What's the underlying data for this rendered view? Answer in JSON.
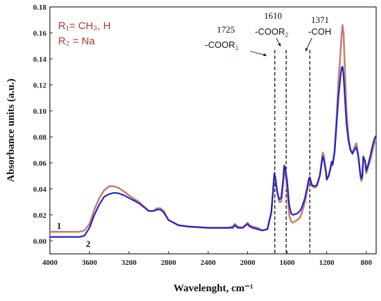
{
  "chart_data": {
    "type": "line",
    "title": "",
    "xlabel": "Wavelenght, cm⁻¹",
    "ylabel": "Absorbance units (a.u.)",
    "xlim": [
      4000,
      700
    ],
    "ylim": [
      -0.01,
      0.18
    ],
    "x_ticks": [
      "4000",
      "3600",
      "3200",
      "2800",
      "2400",
      "2000",
      "1600",
      "1200",
      "800"
    ],
    "y_ticks": [
      "0.00",
      "0.02",
      "0.04",
      "0.06",
      "0.08",
      "0.10",
      "0.12",
      "0.14",
      "0.16",
      "0.18"
    ],
    "grid": false,
    "legend_text": [
      "R₁= CH₃, H",
      "R₂ = Na"
    ],
    "annotations": [
      {
        "x": 1725,
        "number": "1725",
        "group_prefix": "-COOR",
        "group_sub": "1"
      },
      {
        "x": 1610,
        "number": "1610",
        "group_prefix": "-COOR",
        "group_sub": "2"
      },
      {
        "x": 1371,
        "number": "1371",
        "group_prefix": "-COH",
        "group_sub": ""
      }
    ],
    "series": [
      {
        "label": "1",
        "color": "#c87f6f",
        "points": [
          [
            4000,
            0.007
          ],
          [
            3800,
            0.007
          ],
          [
            3700,
            0.007
          ],
          [
            3650,
            0.008
          ],
          [
            3600,
            0.013
          ],
          [
            3550,
            0.024
          ],
          [
            3500,
            0.033
          ],
          [
            3450,
            0.039
          ],
          [
            3400,
            0.042
          ],
          [
            3350,
            0.042
          ],
          [
            3300,
            0.0405
          ],
          [
            3250,
            0.038
          ],
          [
            3200,
            0.035
          ],
          [
            3100,
            0.03
          ],
          [
            3000,
            0.023
          ],
          [
            2950,
            0.023
          ],
          [
            2920,
            0.025
          ],
          [
            2880,
            0.025
          ],
          [
            2850,
            0.023
          ],
          [
            2800,
            0.016
          ],
          [
            2700,
            0.012
          ],
          [
            2600,
            0.011
          ],
          [
            2400,
            0.01
          ],
          [
            2200,
            0.01
          ],
          [
            2150,
            0.011
          ],
          [
            2130,
            0.013
          ],
          [
            2100,
            0.011
          ],
          [
            2050,
            0.01
          ],
          [
            2000,
            0.014
          ],
          [
            1980,
            0.012
          ],
          [
            1950,
            0.011
          ],
          [
            1900,
            0.01
          ],
          [
            1850,
            0.008
          ],
          [
            1800,
            0.009
          ],
          [
            1760,
            0.022
          ],
          [
            1740,
            0.04
          ],
          [
            1730,
            0.05
          ],
          [
            1720,
            0.048
          ],
          [
            1700,
            0.038
          ],
          [
            1680,
            0.03
          ],
          [
            1660,
            0.03
          ],
          [
            1640,
            0.045
          ],
          [
            1630,
            0.055
          ],
          [
            1620,
            0.052
          ],
          [
            1600,
            0.04
          ],
          [
            1580,
            0.02
          ],
          [
            1560,
            0.015
          ],
          [
            1540,
            0.014
          ],
          [
            1500,
            0.016
          ],
          [
            1470,
            0.018
          ],
          [
            1450,
            0.022
          ],
          [
            1420,
            0.03
          ],
          [
            1400,
            0.038
          ],
          [
            1380,
            0.046
          ],
          [
            1371,
            0.046
          ],
          [
            1350,
            0.042
          ],
          [
            1320,
            0.041
          ],
          [
            1300,
            0.042
          ],
          [
            1270,
            0.05
          ],
          [
            1250,
            0.062
          ],
          [
            1240,
            0.068
          ],
          [
            1230,
            0.066
          ],
          [
            1210,
            0.055
          ],
          [
            1200,
            0.048
          ],
          [
            1180,
            0.05
          ],
          [
            1160,
            0.056
          ],
          [
            1150,
            0.06
          ],
          [
            1140,
            0.058
          ],
          [
            1120,
            0.07
          ],
          [
            1100,
            0.095
          ],
          [
            1080,
            0.125
          ],
          [
            1060,
            0.145
          ],
          [
            1050,
            0.158
          ],
          [
            1040,
            0.166
          ],
          [
            1030,
            0.16
          ],
          [
            1020,
            0.14
          ],
          [
            1000,
            0.1
          ],
          [
            980,
            0.08
          ],
          [
            960,
            0.07
          ],
          [
            940,
            0.068
          ],
          [
            920,
            0.072
          ],
          [
            900,
            0.075
          ],
          [
            880,
            0.065
          ],
          [
            860,
            0.05
          ],
          [
            850,
            0.046
          ],
          [
            840,
            0.048
          ],
          [
            830,
            0.063
          ],
          [
            810,
            0.06
          ],
          [
            800,
            0.052
          ],
          [
            780,
            0.057
          ],
          [
            760,
            0.062
          ],
          [
            740,
            0.068
          ],
          [
            720,
            0.075
          ],
          [
            700,
            0.078
          ]
        ]
      },
      {
        "label": "2",
        "color": "#2222cc",
        "points": [
          [
            4000,
            0.003
          ],
          [
            3800,
            0.003
          ],
          [
            3700,
            0.003
          ],
          [
            3650,
            0.004
          ],
          [
            3600,
            0.01
          ],
          [
            3550,
            0.02
          ],
          [
            3500,
            0.028
          ],
          [
            3450,
            0.034
          ],
          [
            3400,
            0.036
          ],
          [
            3350,
            0.037
          ],
          [
            3300,
            0.0365
          ],
          [
            3250,
            0.035
          ],
          [
            3200,
            0.033
          ],
          [
            3100,
            0.029
          ],
          [
            3000,
            0.023
          ],
          [
            2950,
            0.023
          ],
          [
            2920,
            0.024
          ],
          [
            2880,
            0.024
          ],
          [
            2850,
            0.022
          ],
          [
            2800,
            0.016
          ],
          [
            2700,
            0.012
          ],
          [
            2600,
            0.011
          ],
          [
            2400,
            0.01
          ],
          [
            2200,
            0.01
          ],
          [
            2150,
            0.01
          ],
          [
            2130,
            0.012
          ],
          [
            2100,
            0.01
          ],
          [
            2050,
            0.01
          ],
          [
            2000,
            0.013
          ],
          [
            1980,
            0.011
          ],
          [
            1950,
            0.01
          ],
          [
            1900,
            0.009
          ],
          [
            1850,
            0.008
          ],
          [
            1800,
            0.009
          ],
          [
            1760,
            0.022
          ],
          [
            1740,
            0.042
          ],
          [
            1730,
            0.052
          ],
          [
            1720,
            0.049
          ],
          [
            1700,
            0.037
          ],
          [
            1680,
            0.032
          ],
          [
            1660,
            0.033
          ],
          [
            1640,
            0.048
          ],
          [
            1630,
            0.058
          ],
          [
            1620,
            0.056
          ],
          [
            1600,
            0.046
          ],
          [
            1580,
            0.028
          ],
          [
            1560,
            0.021
          ],
          [
            1540,
            0.02
          ],
          [
            1500,
            0.021
          ],
          [
            1470,
            0.023
          ],
          [
            1450,
            0.026
          ],
          [
            1420,
            0.033
          ],
          [
            1400,
            0.04
          ],
          [
            1380,
            0.048
          ],
          [
            1371,
            0.049
          ],
          [
            1350,
            0.043
          ],
          [
            1320,
            0.042
          ],
          [
            1300,
            0.043
          ],
          [
            1270,
            0.05
          ],
          [
            1250,
            0.06
          ],
          [
            1240,
            0.065
          ],
          [
            1230,
            0.063
          ],
          [
            1210,
            0.054
          ],
          [
            1200,
            0.047
          ],
          [
            1180,
            0.05
          ],
          [
            1160,
            0.057
          ],
          [
            1150,
            0.061
          ],
          [
            1140,
            0.059
          ],
          [
            1120,
            0.068
          ],
          [
            1100,
            0.09
          ],
          [
            1080,
            0.112
          ],
          [
            1060,
            0.127
          ],
          [
            1050,
            0.133
          ],
          [
            1040,
            0.134
          ],
          [
            1030,
            0.128
          ],
          [
            1020,
            0.115
          ],
          [
            1000,
            0.09
          ],
          [
            980,
            0.077
          ],
          [
            960,
            0.07
          ],
          [
            940,
            0.067
          ],
          [
            920,
            0.07
          ],
          [
            900,
            0.072
          ],
          [
            880,
            0.065
          ],
          [
            860,
            0.052
          ],
          [
            850,
            0.048
          ],
          [
            840,
            0.05
          ],
          [
            830,
            0.065
          ],
          [
            810,
            0.061
          ],
          [
            800,
            0.054
          ],
          [
            780,
            0.059
          ],
          [
            760,
            0.065
          ],
          [
            740,
            0.072
          ],
          [
            720,
            0.078
          ],
          [
            700,
            0.081
          ]
        ]
      }
    ]
  }
}
